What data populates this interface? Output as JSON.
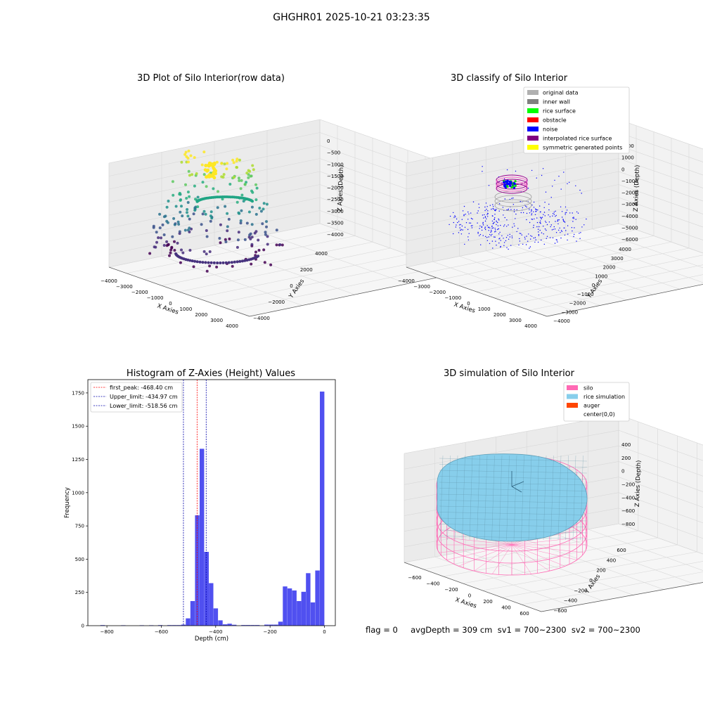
{
  "suptitle": "GHGHR01 2025-10-21 03:23:35",
  "footer": "flag = 0     avgDepth = 309 cm  sv1 = 700~2300  sv2 = 700~2300",
  "chart_data": [
    {
      "type": "scatter",
      "title": "3D Plot of Silo Interior(row data)",
      "xlabel": "X Axies",
      "ylabel": "Y Axies",
      "zlabel": "Z Axies (Depth)",
      "xticks": [
        "−4000",
        "−3000",
        "−2000",
        "−1000",
        "0",
        "1000",
        "2000",
        "3000",
        "4000"
      ],
      "yticks": [
        "−4000",
        "−2000",
        "0",
        "2000",
        "4000"
      ],
      "zticks": [
        "0",
        "−500",
        "−1000",
        "−1500",
        "−2000",
        "−2500",
        "−3000",
        "−3500",
        "−4000"
      ],
      "colormap": "viridis"
    },
    {
      "type": "scatter",
      "title": "3D classify of Silo Interior",
      "xlabel": "X Axies",
      "ylabel": "Y Axies",
      "zlabel": "Z Axies (Depth)",
      "xticks": [
        "−4000",
        "−3000",
        "−2000",
        "−1000",
        "0",
        "1000",
        "2000",
        "3000",
        "4000"
      ],
      "yticks": [
        "−4000",
        "−3000",
        "−2000",
        "−1000",
        "0",
        "1000",
        "2000",
        "3000",
        "4000"
      ],
      "zticks": [
        "2000",
        "1000",
        "0",
        "−1000",
        "−2000",
        "−3000",
        "−4000",
        "−5000",
        "−6000"
      ],
      "legend": [
        {
          "label": "original data",
          "color": "#b0b0b0"
        },
        {
          "label": "inner wall",
          "color": "#808080"
        },
        {
          "label": "rice surface",
          "color": "#00ff00"
        },
        {
          "label": "obstacle",
          "color": "#ff0000"
        },
        {
          "label": "noise",
          "color": "#0000ff"
        },
        {
          "label": "interpolated rice surface",
          "color": "#800080"
        },
        {
          "label": "symmetric generated points",
          "color": "#ffff00"
        }
      ],
      "legend_position": "top-right"
    },
    {
      "type": "bar",
      "title": "Histogram of Z-Axies (Height) Values",
      "xlabel": "Depth (cm)",
      "ylabel": "Frequency",
      "xlim": [
        -870,
        40
      ],
      "ylim": [
        0,
        1850
      ],
      "xticks": [
        -800,
        -600,
        -400,
        -200,
        0
      ],
      "xtick_labels": [
        "−800",
        "−600",
        "−400",
        "−200",
        "0"
      ],
      "yticks": [
        0,
        250,
        500,
        750,
        1000,
        1250,
        1500,
        1750
      ],
      "bar_color": "#5050f0",
      "bin_width": 17,
      "bins": [
        {
          "x": -824,
          "v": 4
        },
        {
          "x": -748,
          "v": 3
        },
        {
          "x": -680,
          "v": 3
        },
        {
          "x": -645,
          "v": 3
        },
        {
          "x": -612,
          "v": 4
        },
        {
          "x": -578,
          "v": 4
        },
        {
          "x": -561,
          "v": 4
        },
        {
          "x": -544,
          "v": 4
        },
        {
          "x": -527,
          "v": 8
        },
        {
          "x": -510,
          "v": 55
        },
        {
          "x": -493,
          "v": 185
        },
        {
          "x": -476,
          "v": 830
        },
        {
          "x": -459,
          "v": 1330
        },
        {
          "x": -442,
          "v": 555
        },
        {
          "x": -425,
          "v": 320
        },
        {
          "x": -408,
          "v": 130
        },
        {
          "x": -391,
          "v": 40
        },
        {
          "x": -374,
          "v": 10
        },
        {
          "x": -357,
          "v": 15
        },
        {
          "x": -340,
          "v": 7
        },
        {
          "x": -306,
          "v": 5
        },
        {
          "x": -289,
          "v": 5
        },
        {
          "x": -272,
          "v": 5
        },
        {
          "x": -255,
          "v": 5
        },
        {
          "x": -221,
          "v": 8
        },
        {
          "x": -204,
          "v": 8
        },
        {
          "x": -187,
          "v": 8
        },
        {
          "x": -170,
          "v": 30
        },
        {
          "x": -153,
          "v": 295
        },
        {
          "x": -136,
          "v": 280
        },
        {
          "x": -119,
          "v": 265
        },
        {
          "x": -102,
          "v": 185
        },
        {
          "x": -85,
          "v": 255
        },
        {
          "x": -68,
          "v": 395
        },
        {
          "x": -51,
          "v": 175
        },
        {
          "x": -34,
          "v": 415
        },
        {
          "x": -17,
          "v": 1760
        }
      ],
      "vlines": [
        {
          "label": "first_peak: -468.40 cm",
          "x": -468.4,
          "color": "#ff0000"
        },
        {
          "label": "Upper_limit: -434.97 cm",
          "x": -434.97,
          "color": "#0000aa"
        },
        {
          "label": "Lower_limit: -518.56 cm",
          "x": -518.56,
          "color": "#0000aa"
        }
      ],
      "legend_position": "top-left"
    },
    {
      "type": "surface",
      "title": "3D simulation of Silo Interior",
      "xlabel": "X Axies",
      "ylabel": "Y Axies",
      "zlabel": "Z Axies (Depth)",
      "xticks": [
        "−600",
        "−400",
        "−200",
        "0",
        "200",
        "400",
        "600"
      ],
      "yticks": [
        "−600",
        "−400",
        "−200",
        "0",
        "200",
        "400",
        "600"
      ],
      "zticks": [
        "400",
        "200",
        "0",
        "−200",
        "−400",
        "−600",
        "−800"
      ],
      "legend": [
        {
          "label": "silo",
          "color": "#ff69b4"
        },
        {
          "label": "rice simulation",
          "color": "#87ceeb"
        },
        {
          "label": "auger",
          "color": "#ff4500"
        },
        {
          "label": "center(0,0)",
          "color": "#ffffff"
        }
      ],
      "legend_position": "top-right"
    }
  ]
}
